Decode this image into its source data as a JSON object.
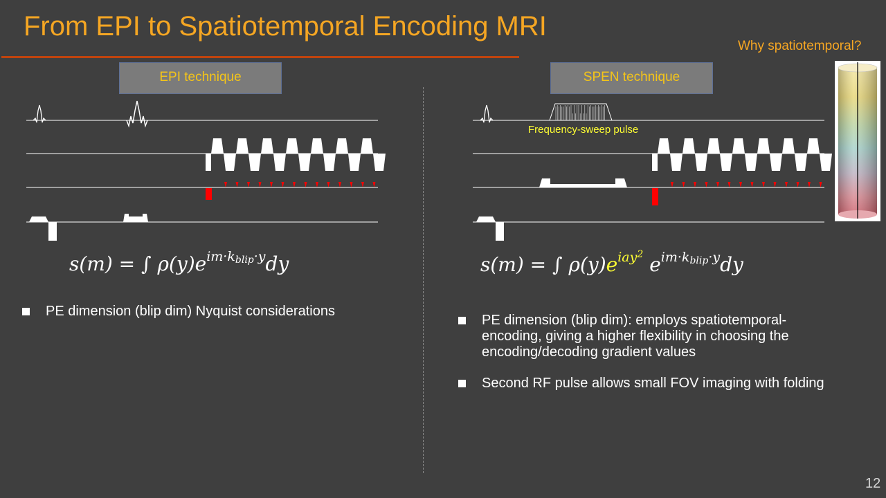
{
  "title": "From EPI to Spatiotemporal Encoding MRI",
  "why_link": "Why spatiotemporal?",
  "left": {
    "box_label": "EPI technique",
    "formula": {
      "lhs": "s(m) = ∫ ρ(y)e",
      "exp": "im·k",
      "exp_sub": "blip",
      "exp_tail": "·y",
      "dy": "dy"
    },
    "bullets": [
      "PE dimension (blip dim) Nyquist considerations"
    ]
  },
  "right": {
    "box_label": "SPEN technique",
    "pulse_label": "Frequency-sweep pulse",
    "formula": {
      "lhs": "s(m) = ∫ ρ(y)",
      "quad_base": "e",
      "quad_exp": "iay",
      "quad_pow": "2",
      "mid": " e",
      "exp": "im·k",
      "exp_sub": "blip",
      "exp_tail": "·y",
      "dy": "dy"
    },
    "bullets": [
      "PE dimension (blip dim):  employs spatiotemporal-encoding, giving a higher flexibility in choosing the encoding/decoding gradient values",
      "Second RF pulse allows small FOV imaging with folding"
    ]
  },
  "page_number": "12",
  "colors": {
    "title": "#f5a623",
    "accent_rule": "#c0440e",
    "box_text": "#f5c518",
    "highlight": "#ffff33",
    "blip": "#ff0000"
  }
}
